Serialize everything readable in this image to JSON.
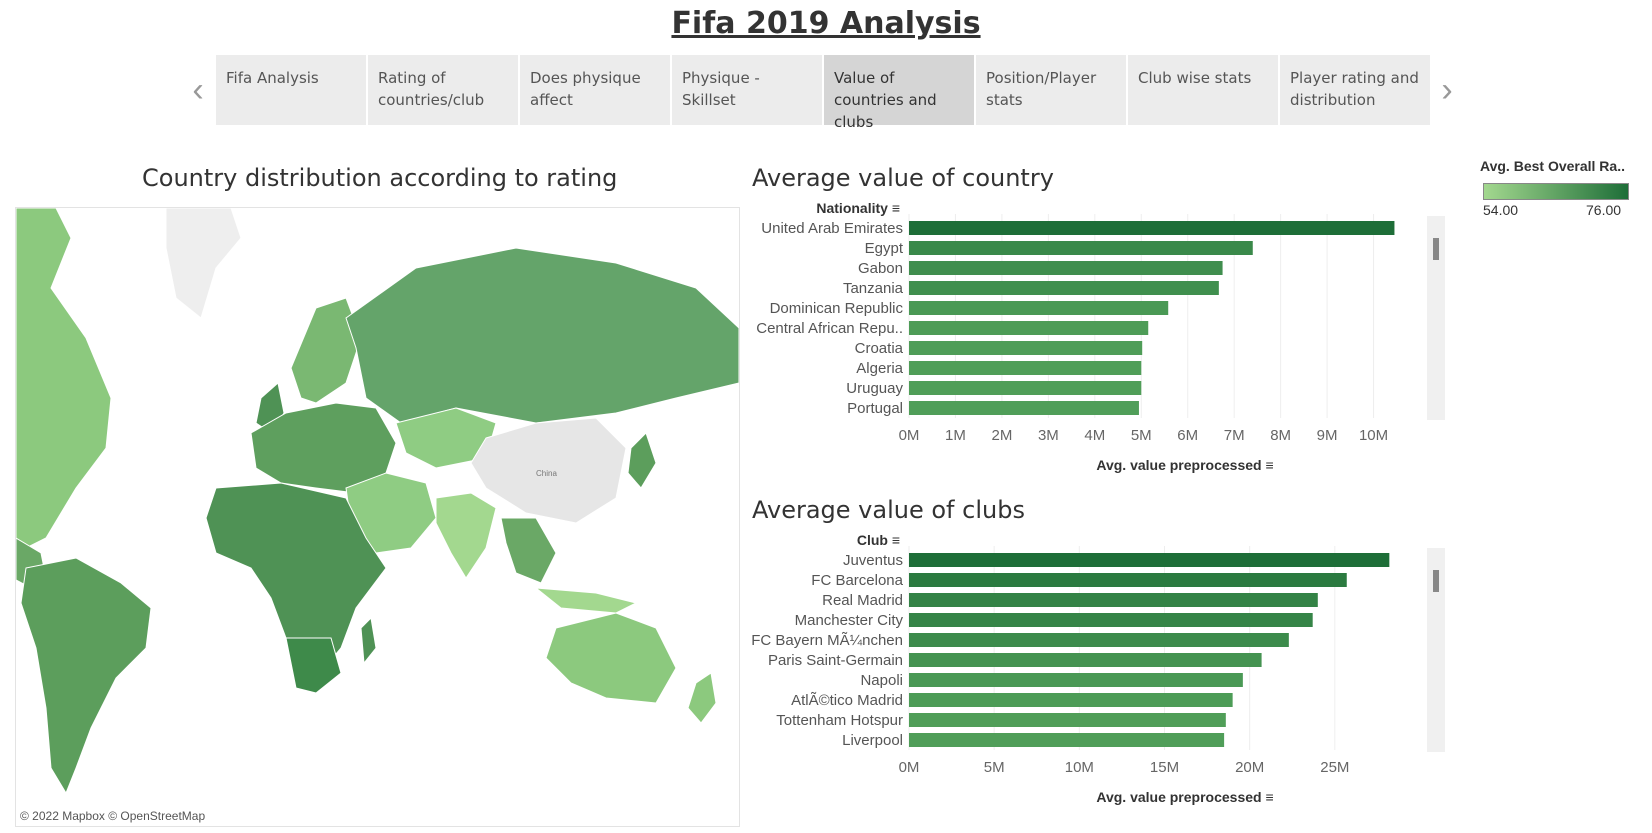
{
  "title": "Fifa 2019 Analysis",
  "tabs": [
    {
      "label": "Fifa Analysis",
      "active": false
    },
    {
      "label": "Rating of countries/club",
      "active": false
    },
    {
      "label": "Does physique affect",
      "active": false
    },
    {
      "label": "Physique - Skillset",
      "active": false
    },
    {
      "label": "Value of countries and clubs",
      "active": true
    },
    {
      "label": "Position/Player stats",
      "active": false
    },
    {
      "label": "Club wise stats",
      "active": false
    },
    {
      "label": "Player rating and distribution",
      "active": false
    }
  ],
  "map": {
    "title": "Country distribution according to rating",
    "attribution": "© 2022 Mapbox © OpenStreetMap",
    "labels": {
      "china": "China"
    }
  },
  "legend": {
    "title": "Avg. Best Overall Ra..",
    "min": "54.00",
    "max": "76.00",
    "color_low": "#a3d88f",
    "color_high": "#1e6e38"
  },
  "chart_data": [
    {
      "type": "bar",
      "orientation": "horizontal",
      "title": "Average value of country",
      "dimension_label": "Nationality",
      "xlabel": "Avg. value preprocessed",
      "categories": [
        "United Arab Emirates",
        "Egypt",
        "Gabon",
        "Tanzania",
        "Dominican Republic",
        "Central African Repu..",
        "Croatia",
        "Algeria",
        "Uruguay",
        "Portugal"
      ],
      "values": [
        10450000,
        7400000,
        6750000,
        6670000,
        5580000,
        5150000,
        5020000,
        5000000,
        5000000,
        4950000
      ],
      "ticks": [
        "0M",
        "1M",
        "2M",
        "3M",
        "4M",
        "5M",
        "6M",
        "7M",
        "8M",
        "9M",
        "10M"
      ],
      "xlim": [
        0,
        11000000
      ]
    },
    {
      "type": "bar",
      "orientation": "horizontal",
      "title": "Average value of clubs",
      "dimension_label": "Club",
      "xlabel": "Avg. value preprocessed",
      "categories": [
        "Juventus",
        "FC Barcelona",
        "Real Madrid",
        "Manchester City",
        "FC Bayern MÃ¼nchen",
        "Paris Saint-Germain",
        "Napoli",
        "AtlÃ©tico Madrid",
        "Tottenham Hotspur",
        "Liverpool"
      ],
      "values": [
        28200000,
        25700000,
        24000000,
        23700000,
        22300000,
        20700000,
        19600000,
        19000000,
        18600000,
        18500000
      ],
      "ticks": [
        "0M",
        "5M",
        "10M",
        "15M",
        "20M",
        "25M"
      ],
      "xlim": [
        0,
        30000000
      ]
    }
  ]
}
